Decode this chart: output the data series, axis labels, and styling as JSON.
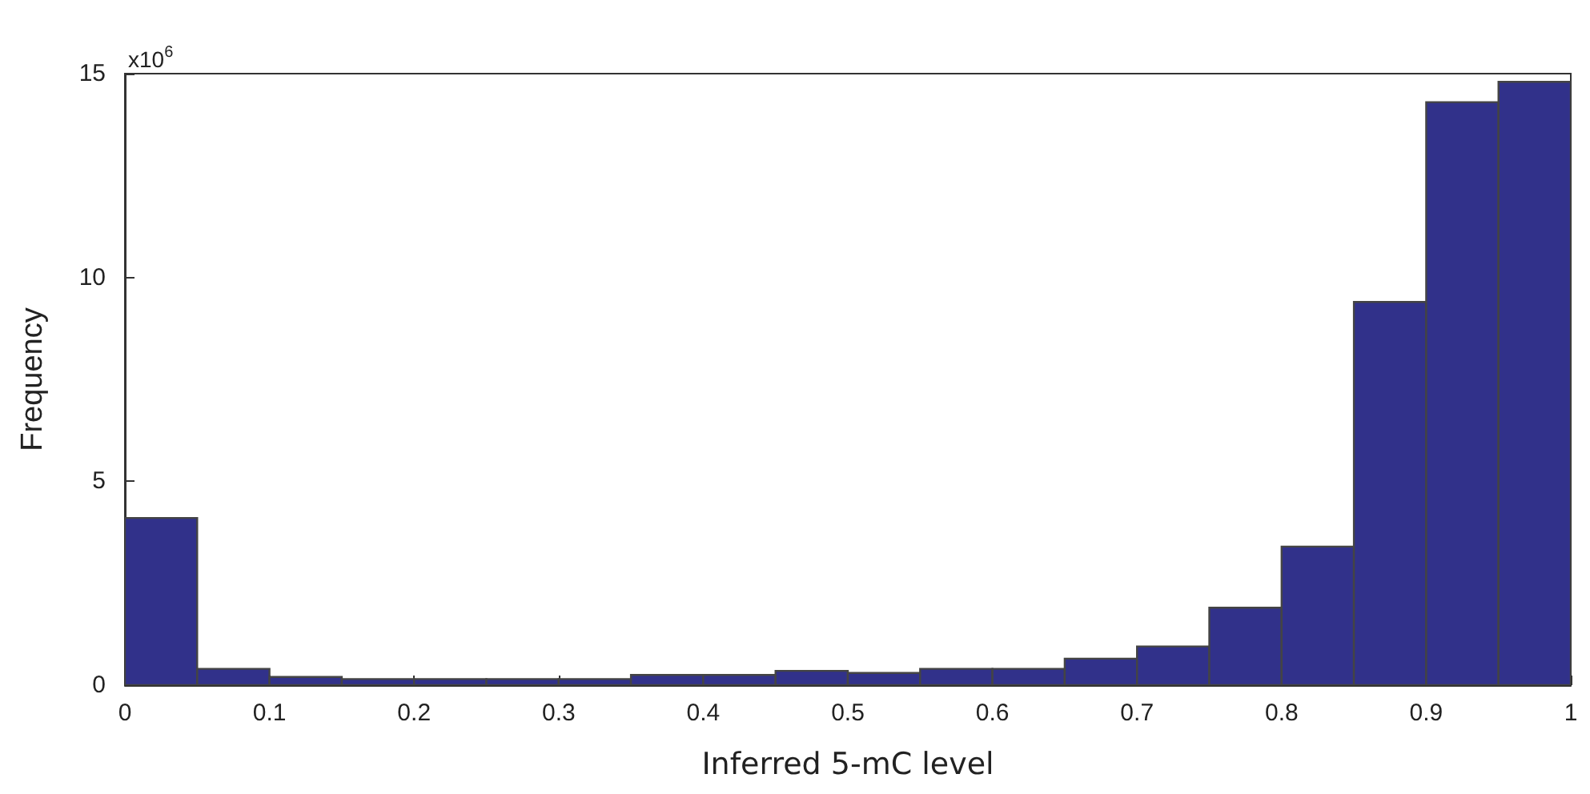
{
  "chart_data": {
    "type": "histogram",
    "xlabel": "Inferred 5-mC level",
    "ylabel": "Frequency",
    "annotations": [
      "x10$^{6}$"
    ],
    "bins": [
      0,
      0.05,
      0.1,
      0.15,
      0.2,
      0.25,
      0.3,
      0.35,
      0.4,
      0.45,
      0.5,
      0.55,
      0.6,
      0.65,
      0.7,
      0.75,
      0.8,
      0.85,
      0.9,
      0.95,
      1
    ],
    "values": [
      4.1,
      0.4,
      0.2,
      0.15,
      0.15,
      0.15,
      0.15,
      0.25,
      0.25,
      0.35,
      0.3,
      0.4,
      0.4,
      0.65,
      0.95,
      1.9,
      3.4,
      9.4,
      14.3,
      14.8
    ],
    "color": "#31318a",
    "xlim": [
      0,
      1
    ],
    "xticks": [
      0,
      0.1,
      0.2,
      0.3,
      0.4,
      0.5,
      0.6,
      0.7,
      0.8,
      0.9,
      1
    ],
    "ylim": [
      0,
      15
    ],
    "yticks": [
      0,
      5,
      10,
      15
    ],
    "grid": false
  }
}
